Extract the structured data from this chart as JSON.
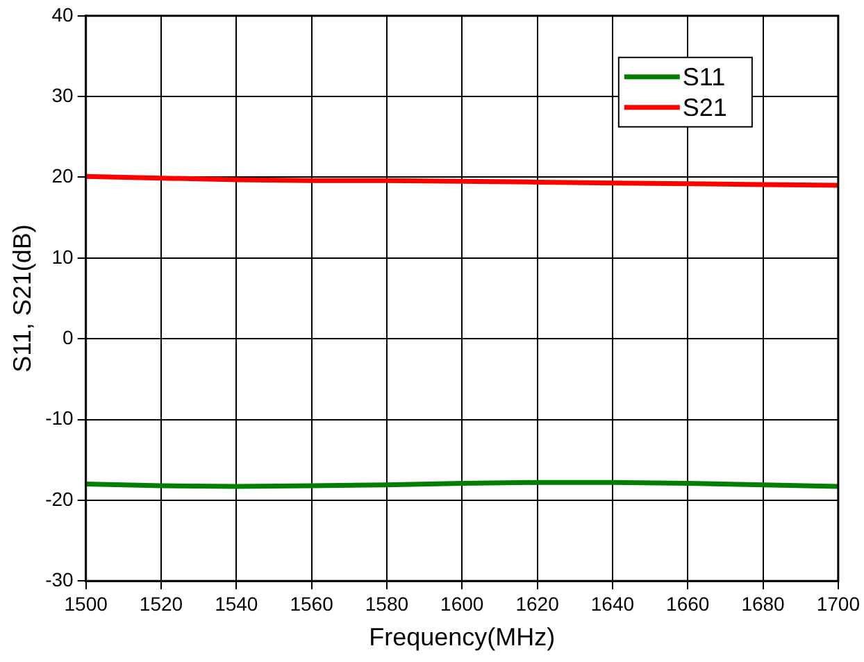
{
  "chart_data": {
    "type": "line",
    "xlabel": "Frequency(MHz)",
    "ylabel": "S11, S21(dB)",
    "x": [
      1500,
      1520,
      1540,
      1560,
      1580,
      1600,
      1620,
      1640,
      1660,
      1680,
      1700
    ],
    "series": [
      {
        "name": "S11",
        "color": "#008000",
        "values": [
          -18.0,
          -18.2,
          -18.3,
          -18.2,
          -18.1,
          -17.9,
          -17.8,
          -17.8,
          -17.9,
          -18.1,
          -18.3
        ]
      },
      {
        "name": "S21",
        "color": "#ff0000",
        "values": [
          20.1,
          19.9,
          19.7,
          19.6,
          19.6,
          19.5,
          19.4,
          19.3,
          19.2,
          19.1,
          19.0
        ]
      }
    ],
    "xlim": [
      1500,
      1700
    ],
    "xticks": [
      1500,
      1520,
      1540,
      1560,
      1580,
      1600,
      1620,
      1640,
      1660,
      1680,
      1700
    ],
    "ylim": [
      -30,
      40
    ],
    "yticks": [
      -30,
      -20,
      -10,
      0,
      10,
      20,
      30,
      40
    ],
    "grid": true,
    "legend": "top right",
    "marker": "none",
    "line_style": "solid"
  }
}
